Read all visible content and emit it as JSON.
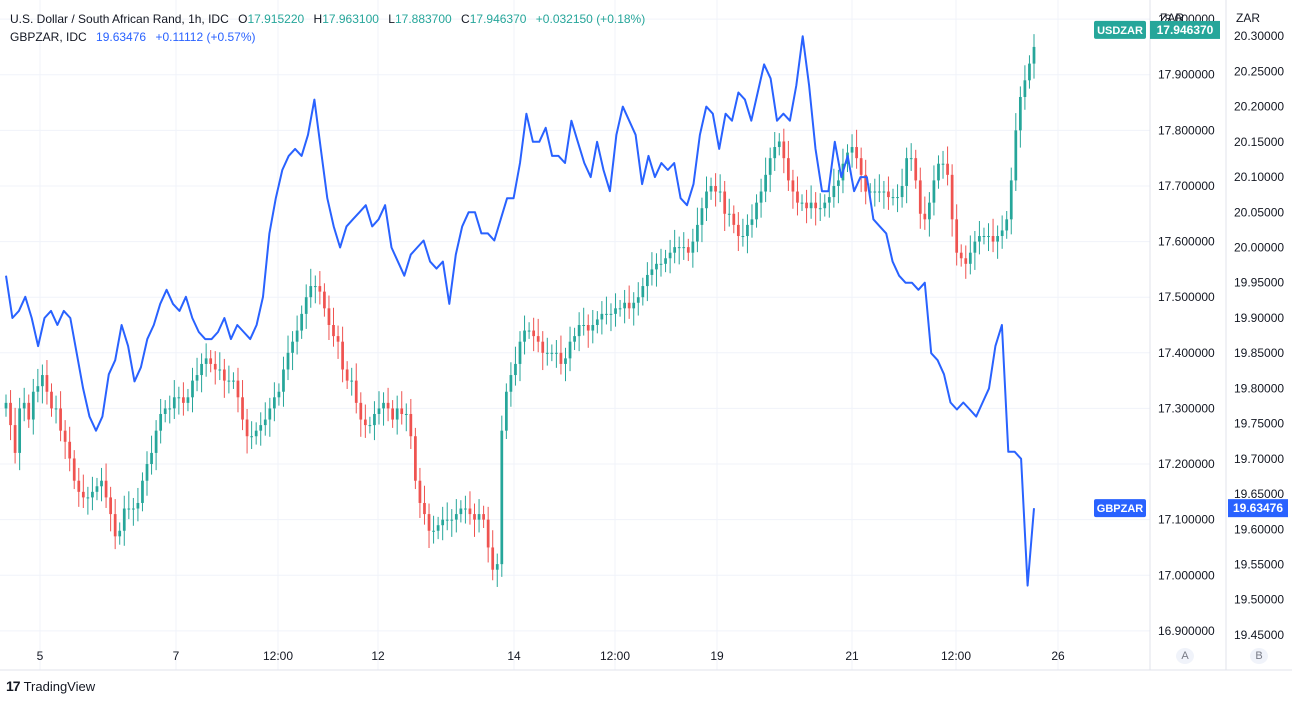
{
  "legend": {
    "series1": {
      "symbol": "U.S. Dollar / South African Rand, 1h, IDC",
      "o_label": "O",
      "o_value": "17.915220",
      "h_label": "H",
      "h_value": "17.963100",
      "l_label": "L",
      "l_value": "17.883700",
      "c_label": "C",
      "c_value": "17.946370",
      "change": "+0.032150 (+0.18%)"
    },
    "series2": {
      "symbol": "GBPZAR, IDC",
      "value": "19.63476",
      "change": "+0.11112 (+0.57%)"
    }
  },
  "scale_buttons": {
    "a": "A",
    "b": "B"
  },
  "branding": {
    "logo_mark": "17",
    "name": "TradingView"
  },
  "colors": {
    "up": "#26a69a",
    "down": "#ef5350",
    "line": "#2962ff",
    "grid": "#f0f3fa",
    "usd_label_bg": "#26a69a",
    "gbp_label_bg": "#2962ff"
  },
  "chart_data": {
    "type": "line",
    "currency_axis_title_a": "ZAR",
    "currency_axis_title_b": "ZAR",
    "x_tick_labels": [
      "5",
      "7",
      "12:00",
      "12",
      "14",
      "12:00",
      "19",
      "21",
      "12:00",
      "26"
    ],
    "y_axis_a": {
      "range": [
        16.88,
        18.02
      ],
      "ticks": [
        "18.000000",
        "17.900000",
        "17.800000",
        "17.700000",
        "17.600000",
        "17.500000",
        "17.400000",
        "17.300000",
        "17.200000",
        "17.100000",
        "17.000000",
        "16.900000"
      ]
    },
    "y_axis_b": {
      "range": [
        19.44,
        20.34
      ],
      "ticks": [
        "20.30000",
        "20.25000",
        "20.20000",
        "20.15000",
        "20.10000",
        "20.05000",
        "20.00000",
        "19.95000",
        "19.90000",
        "19.85000",
        "19.80000",
        "19.75000",
        "19.70000",
        "19.65000",
        "19.60000",
        "19.55000",
        "19.50000",
        "19.45000"
      ]
    },
    "price_labels": [
      {
        "name": "USDZAR",
        "value": "17.946370"
      },
      {
        "name": "GBPZAR",
        "value": "19.63476"
      }
    ],
    "series": [
      {
        "name": "USDZAR",
        "style": "candles",
        "axis": "a",
        "values": [
          17.31,
          17.27,
          17.22,
          17.3,
          17.31,
          17.28,
          17.33,
          17.34,
          17.36,
          17.33,
          17.3,
          17.3,
          17.26,
          17.24,
          17.21,
          17.17,
          17.15,
          17.14,
          17.14,
          17.15,
          17.16,
          17.17,
          17.14,
          17.11,
          17.07,
          17.08,
          17.12,
          17.12,
          17.12,
          17.13,
          17.17,
          17.2,
          17.22,
          17.26,
          17.29,
          17.3,
          17.3,
          17.32,
          17.32,
          17.31,
          17.32,
          17.35,
          17.36,
          17.38,
          17.39,
          17.38,
          17.37,
          17.37,
          17.35,
          17.35,
          17.35,
          17.32,
          17.28,
          17.25,
          17.25,
          17.26,
          17.27,
          17.28,
          17.3,
          17.32,
          17.33,
          17.37,
          17.4,
          17.42,
          17.44,
          17.47,
          17.5,
          17.52,
          17.52,
          17.51,
          17.48,
          17.45,
          17.43,
          17.42,
          17.37,
          17.35,
          17.35,
          17.31,
          17.28,
          17.27,
          17.27,
          17.29,
          17.3,
          17.31,
          17.3,
          17.28,
          17.3,
          17.29,
          17.29,
          17.25,
          17.17,
          17.13,
          17.11,
          17.08,
          17.08,
          17.09,
          17.1,
          17.1,
          17.1,
          17.11,
          17.12,
          17.12,
          17.11,
          17.1,
          17.11,
          17.1,
          17.05,
          17.01,
          17.02,
          17.26,
          17.33,
          17.36,
          17.38,
          17.42,
          17.44,
          17.44,
          17.43,
          17.42,
          17.4,
          17.4,
          17.4,
          17.4,
          17.38,
          17.39,
          17.42,
          17.43,
          17.45,
          17.45,
          17.44,
          17.45,
          17.46,
          17.47,
          17.47,
          17.47,
          17.48,
          17.48,
          17.49,
          17.48,
          17.49,
          17.5,
          17.52,
          17.54,
          17.55,
          17.56,
          17.56,
          17.57,
          17.58,
          17.59,
          17.59,
          17.59,
          17.58,
          17.6,
          17.63,
          17.66,
          17.69,
          17.7,
          17.69,
          17.69,
          17.65,
          17.65,
          17.63,
          17.61,
          17.61,
          17.63,
          17.64,
          17.67,
          17.69,
          17.72,
          17.75,
          17.77,
          17.78,
          17.75,
          17.71,
          17.69,
          17.67,
          17.67,
          17.66,
          17.67,
          17.66,
          17.66,
          17.67,
          17.68,
          17.7,
          17.71,
          17.74,
          17.76,
          17.77,
          17.75,
          17.72,
          17.69,
          17.69,
          17.69,
          17.69,
          17.69,
          17.68,
          17.68,
          17.68,
          17.7,
          17.75,
          17.75,
          17.71,
          17.65,
          17.64,
          17.67,
          17.71,
          17.74,
          17.74,
          17.72,
          17.64,
          17.58,
          17.57,
          17.56,
          17.58,
          17.6,
          17.61,
          17.61,
          17.61,
          17.6,
          17.61,
          17.62,
          17.64,
          17.71,
          17.8,
          17.86,
          17.89,
          17.92,
          17.95
        ]
      },
      {
        "name": "GBPZAR",
        "style": "line",
        "axis": "b",
        "values": [
          19.96,
          19.9,
          19.91,
          19.93,
          19.9,
          19.86,
          19.9,
          19.91,
          19.89,
          19.91,
          19.9,
          19.85,
          19.8,
          19.76,
          19.74,
          19.76,
          19.82,
          19.84,
          19.89,
          19.86,
          19.81,
          19.83,
          19.87,
          19.89,
          19.92,
          19.94,
          19.92,
          19.91,
          19.93,
          19.9,
          19.88,
          19.87,
          19.87,
          19.88,
          19.9,
          19.87,
          19.89,
          19.88,
          19.87,
          19.89,
          19.93,
          20.02,
          20.07,
          20.11,
          20.13,
          20.14,
          20.13,
          20.16,
          20.21,
          20.14,
          20.07,
          20.03,
          20.0,
          20.03,
          20.04,
          20.05,
          20.06,
          20.03,
          20.04,
          20.06,
          20.0,
          19.98,
          19.96,
          19.99,
          20.0,
          20.01,
          19.98,
          19.97,
          19.98,
          19.92,
          19.99,
          20.03,
          20.05,
          20.05,
          20.02,
          20.02,
          20.01,
          20.04,
          20.07,
          20.07,
          20.12,
          20.19,
          20.15,
          20.15,
          20.17,
          20.13,
          20.13,
          20.12,
          20.18,
          20.15,
          20.12,
          20.1,
          20.15,
          20.11,
          20.08,
          20.16,
          20.2,
          20.18,
          20.16,
          20.09,
          20.13,
          20.1,
          20.12,
          20.11,
          20.12,
          20.07,
          20.06,
          20.09,
          20.16,
          20.2,
          20.19,
          20.14,
          20.19,
          20.18,
          20.22,
          20.21,
          20.18,
          20.22,
          20.26,
          20.24,
          20.18,
          20.19,
          20.18,
          20.23,
          20.3,
          20.23,
          20.14,
          20.08,
          20.08,
          20.15,
          20.1,
          20.13,
          20.08,
          20.1,
          20.1,
          20.04,
          20.03,
          20.02,
          19.98,
          19.96,
          19.95,
          19.95,
          19.94,
          19.95,
          19.85,
          19.84,
          19.82,
          19.78,
          19.77,
          19.78,
          19.77,
          19.76,
          19.78,
          19.8,
          19.86,
          19.89,
          19.71,
          19.71,
          19.7,
          19.52,
          19.63
        ]
      }
    ]
  }
}
